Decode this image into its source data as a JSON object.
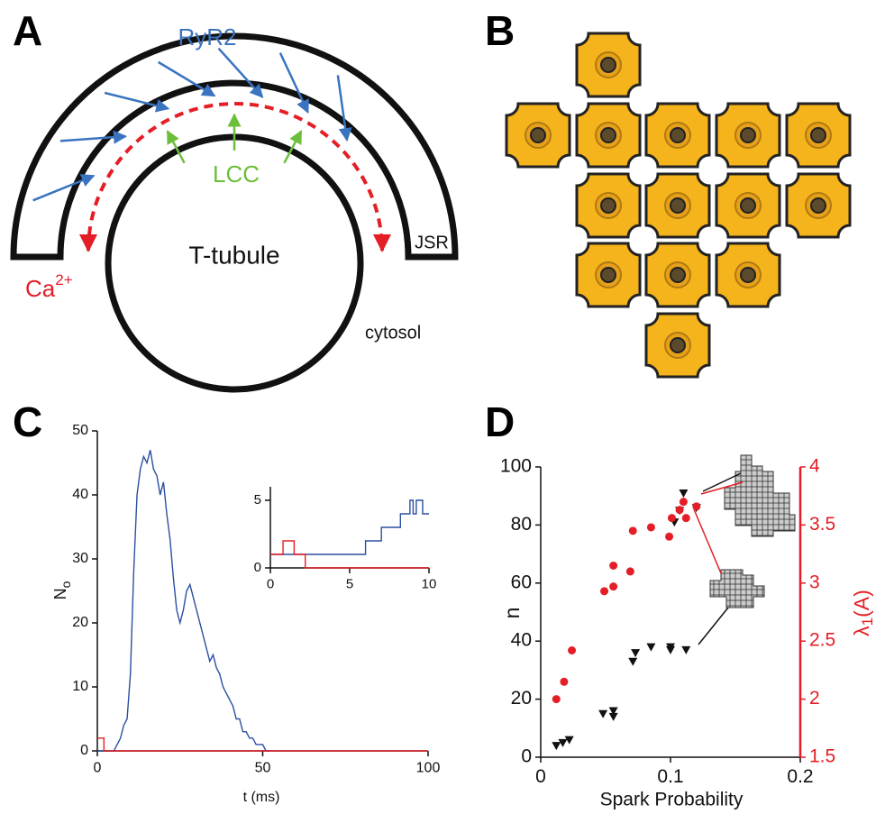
{
  "panel_labels": [
    "A",
    "B",
    "C",
    "D"
  ],
  "diagram_a": {
    "ryr2": "RyR2",
    "lcc": "LCC",
    "t_tubule": "T-tubule",
    "jsr": "JSR",
    "ca": "Ca",
    "ca_superscript": "2+",
    "cytosol": "cytosol"
  },
  "chart_data": [
    {
      "type": "line",
      "xlabel": "t (ms)",
      "ylabel": "N",
      "ylabel_subscript": "o",
      "xlim": [
        0,
        100
      ],
      "xticks": [
        0,
        50,
        100
      ],
      "ylim": [
        0,
        50
      ],
      "yticks": [
        0,
        10,
        20,
        30,
        40,
        50
      ],
      "series": [
        {
          "color": "#2b4fa0",
          "x": [
            0,
            1,
            2,
            3,
            4,
            5,
            6,
            7,
            8,
            9,
            10,
            11,
            12,
            13,
            14,
            15,
            16,
            17,
            18,
            19,
            20,
            21,
            22,
            23,
            24,
            25,
            26,
            27,
            28,
            29,
            30,
            31,
            32,
            33,
            34,
            35,
            36,
            37,
            38,
            39,
            40,
            41,
            42,
            43,
            44,
            45,
            46,
            47,
            48,
            49,
            50,
            51,
            52
          ],
          "values": [
            0,
            0,
            0,
            0,
            0,
            0,
            1,
            2,
            4,
            5,
            12,
            28,
            40,
            44,
            46,
            45,
            47,
            44,
            43,
            40,
            42,
            37,
            33,
            27,
            22,
            20,
            22,
            25,
            26,
            24,
            22,
            20,
            18,
            16,
            14,
            15,
            13,
            12,
            10,
            9,
            8,
            7,
            5,
            5,
            3,
            3,
            2,
            2,
            1,
            1,
            1,
            0,
            0
          ]
        },
        {
          "color": "#e41e26",
          "x": [
            0,
            2,
            2,
            100
          ],
          "values": [
            2,
            2,
            0,
            0
          ]
        }
      ]
    },
    {
      "type": "line",
      "xlim": [
        0,
        10
      ],
      "xticks": [
        0,
        5,
        10
      ],
      "ylim": [
        0,
        6
      ],
      "yticks": [
        0,
        5
      ],
      "series": [
        {
          "color": "#2b4fa0",
          "x": [
            0,
            6,
            6,
            7,
            7,
            8.2,
            8.2,
            8.8,
            8.8,
            9,
            9,
            9.2,
            9.2,
            9.6,
            9.6,
            10
          ],
          "values": [
            1,
            1,
            2,
            2,
            3,
            3,
            4,
            4,
            5,
            5,
            4,
            4,
            5,
            5,
            4,
            4
          ]
        },
        {
          "color": "#e41e26",
          "x": [
            0,
            0.8,
            0.8,
            1.5,
            1.5,
            2.2,
            2.2,
            10
          ],
          "values": [
            1,
            1,
            2,
            2,
            1,
            1,
            0,
            0
          ]
        }
      ]
    },
    {
      "type": "scatter",
      "xlabel": "Spark Probability",
      "ylabel": "n",
      "y2label": "λ",
      "y2label_subscript": "1",
      "y2label_suffix": "(A)",
      "xlim": [
        0,
        0.2
      ],
      "xticks": [
        0,
        0.1,
        0.2
      ],
      "ylim": [
        0,
        100
      ],
      "yticks": [
        0,
        20,
        40,
        60,
        80,
        100
      ],
      "y2lim": [
        1.5,
        4
      ],
      "y2ticks": [
        1.5,
        2,
        2.5,
        3,
        3.5,
        4
      ],
      "y2color": "#e41e26",
      "series": [
        {
          "marker": "triangle",
          "color": "#111111",
          "x": [
            0.012,
            0.017,
            0.022,
            0.048,
            0.056,
            0.056,
            0.071,
            0.073,
            0.085,
            0.1,
            0.1,
            0.112,
            0.103,
            0.107,
            0.11,
            0.12
          ],
          "values": [
            4,
            5,
            6,
            15,
            14,
            16,
            33,
            36,
            38,
            38,
            37,
            37,
            81,
            85,
            91,
            86
          ]
        },
        {
          "marker": "circle",
          "color": "#e41e26",
          "axis": "y2",
          "x": [
            0.012,
            0.018,
            0.024,
            0.049,
            0.056,
            0.056,
            0.069,
            0.071,
            0.085,
            0.099,
            0.101,
            0.107,
            0.11,
            0.112,
            0.12
          ],
          "values": [
            2.0,
            2.15,
            2.42,
            2.93,
            2.97,
            3.15,
            3.1,
            3.45,
            3.48,
            3.4,
            3.56,
            3.63,
            3.7,
            3.56,
            3.66
          ]
        }
      ]
    }
  ]
}
